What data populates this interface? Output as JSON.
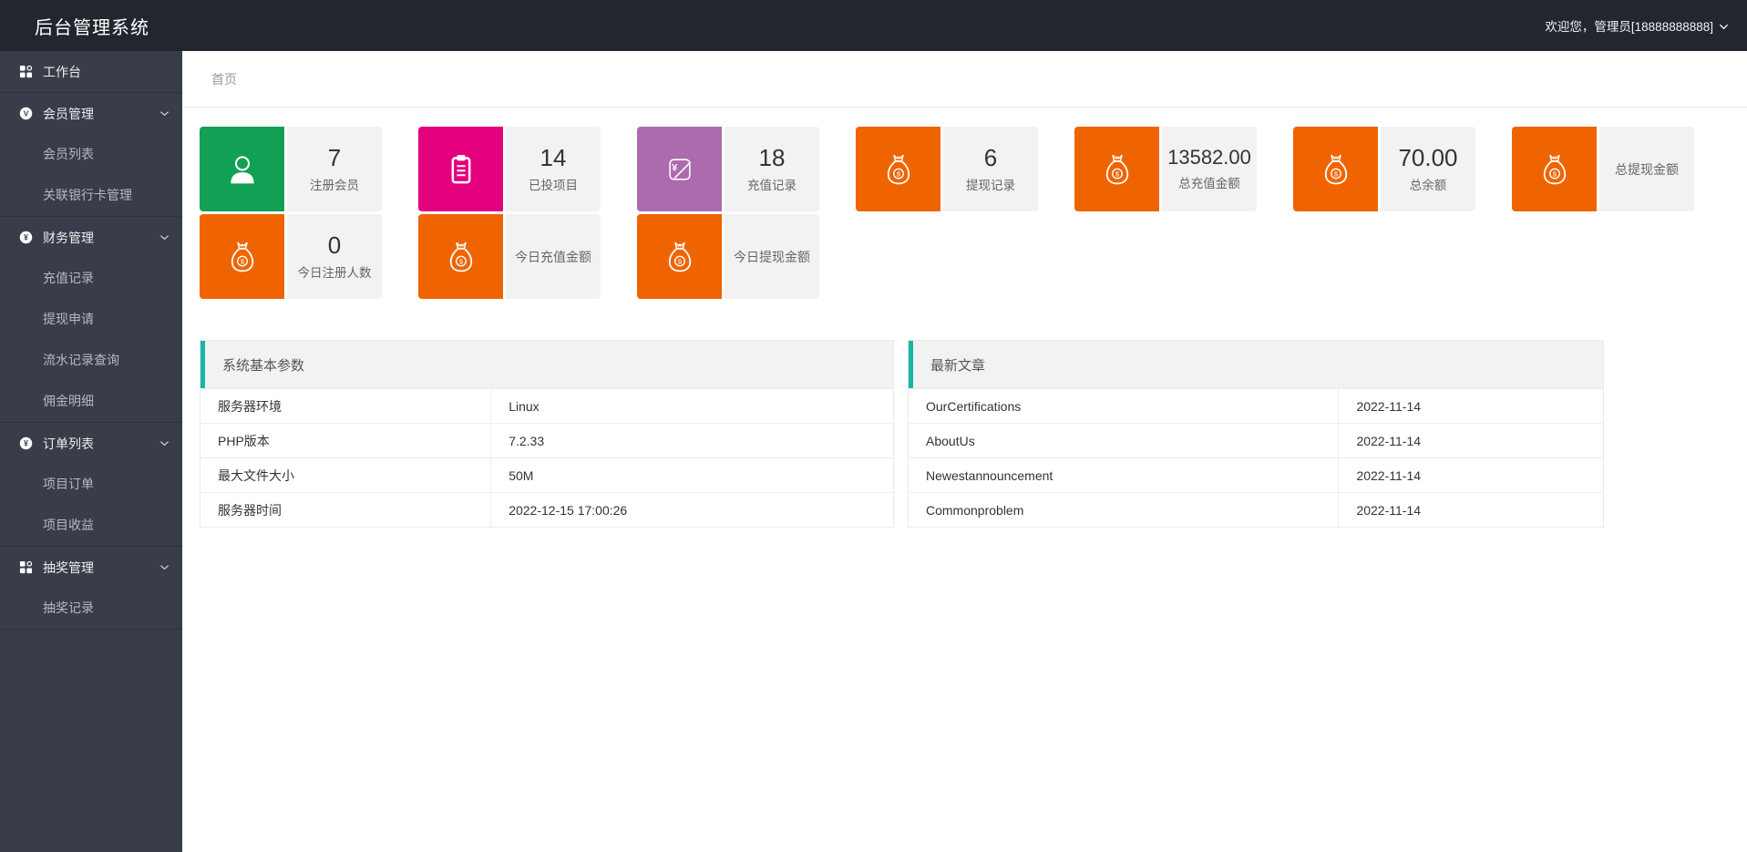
{
  "header": {
    "title": "后台管理系统",
    "welcome": "欢迎您，管理员[18888888888]"
  },
  "breadcrumb": {
    "home": "首页"
  },
  "sidebar": {
    "sections": [
      {
        "label": "工作台",
        "icon": "grid-icon",
        "chevron": false,
        "children": []
      },
      {
        "label": "会员管理",
        "icon": "v-badge-icon",
        "chevron": true,
        "children": [
          "会员列表",
          "关联银行卡管理"
        ]
      },
      {
        "label": "财务管理",
        "icon": "yen-badge-icon",
        "chevron": true,
        "children": [
          "充值记录",
          "提现申请",
          "流水记录查询",
          "佣金明细"
        ]
      },
      {
        "label": "订单列表",
        "icon": "yen-badge-icon",
        "chevron": true,
        "children": [
          "项目订单",
          "项目收益"
        ]
      },
      {
        "label": "抽奖管理",
        "icon": "grid-icon",
        "chevron": true,
        "children": [
          "抽奖记录"
        ]
      }
    ]
  },
  "stats": {
    "row1": [
      {
        "value": "7",
        "label": "注册会员",
        "color": "#11a054",
        "icon": "user-icon"
      },
      {
        "value": "14",
        "label": "已投项目",
        "color": "#e4017e",
        "icon": "clipboard-icon"
      },
      {
        "value": "18",
        "label": "充值记录",
        "color": "#ac6bae",
        "icon": "recharge-icon"
      },
      {
        "value": "6",
        "label": "提现记录",
        "color": "#f06400",
        "icon": "moneybag-icon"
      },
      {
        "value": "13582.00",
        "label": "总充值金额",
        "color": "#f06400",
        "icon": "moneybag-icon"
      },
      {
        "value": "70.00",
        "label": "总余额",
        "color": "#f06400",
        "icon": "moneybag-icon"
      },
      {
        "value": "",
        "label": "总提现金额",
        "color": "#f06400",
        "icon": "moneybag-icon"
      }
    ],
    "row2": [
      {
        "value": "0",
        "label": "今日注册人数",
        "color": "#f06400",
        "icon": "moneybag-icon"
      },
      {
        "value": "",
        "label": "今日充值金额",
        "color": "#f06400",
        "icon": "moneybag-icon"
      },
      {
        "value": "",
        "label": "今日提现金额",
        "color": "#f06400",
        "icon": "moneybag-icon"
      }
    ]
  },
  "panels": {
    "system": {
      "title": "系统基本参数",
      "rows": [
        [
          "服务器环境",
          "Linux"
        ],
        [
          "PHP版本",
          "7.2.33"
        ],
        [
          "最大文件大小",
          "50M"
        ],
        [
          "服务器时间",
          "2022-12-15 17:00:26"
        ]
      ]
    },
    "articles": {
      "title": "最新文章",
      "rows": [
        [
          "OurCertifications",
          "2022-11-14"
        ],
        [
          "AboutUs",
          "2022-11-14"
        ],
        [
          "Newestannouncement",
          "2022-11-14"
        ],
        [
          "Commonproblem",
          "2022-11-14"
        ]
      ]
    }
  },
  "colors": {
    "header_bg": "#23262e",
    "sidebar_bg": "#393d49",
    "accent_teal": "#16b7a4",
    "card_green": "#11a054",
    "card_pink": "#e4017e",
    "card_purple": "#ac6bae",
    "card_orange": "#f06400",
    "card_gray": "#f2f2f2"
  }
}
